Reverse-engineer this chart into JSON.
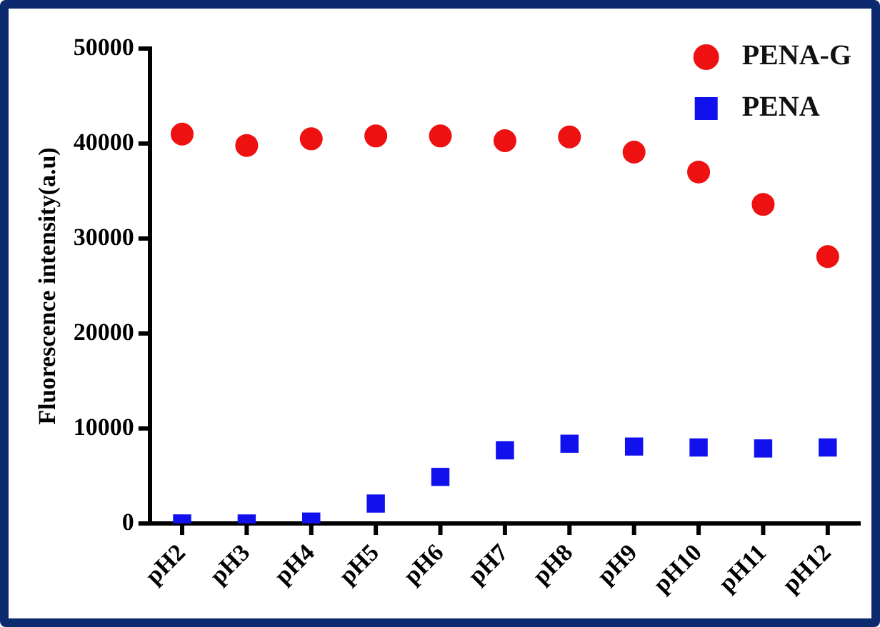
{
  "chart_data": {
    "type": "scatter",
    "ylabel": "Fluorescence intensity(a.u)",
    "categories": [
      "pH2",
      "pH3",
      "pH4",
      "pH5",
      "pH6",
      "pH7",
      "pH8",
      "pH9",
      "pH10",
      "pH11",
      "pH12"
    ],
    "series": [
      {
        "name": "PENA-G",
        "color": "#ee1111",
        "marker": "circle",
        "values": [
          41000,
          39800,
          40500,
          40800,
          40800,
          40300,
          40700,
          39100,
          37000,
          33600,
          28100
        ]
      },
      {
        "name": "PENA",
        "color": "#1111ee",
        "marker": "square",
        "values": [
          0,
          0,
          200,
          2100,
          4900,
          7700,
          8400,
          8100,
          8000,
          7900,
          8000
        ]
      }
    ],
    "ylim": [
      0,
      50000
    ],
    "yticks": [
      0,
      10000,
      20000,
      30000,
      40000,
      50000
    ],
    "grid": false,
    "legend": "top right"
  }
}
